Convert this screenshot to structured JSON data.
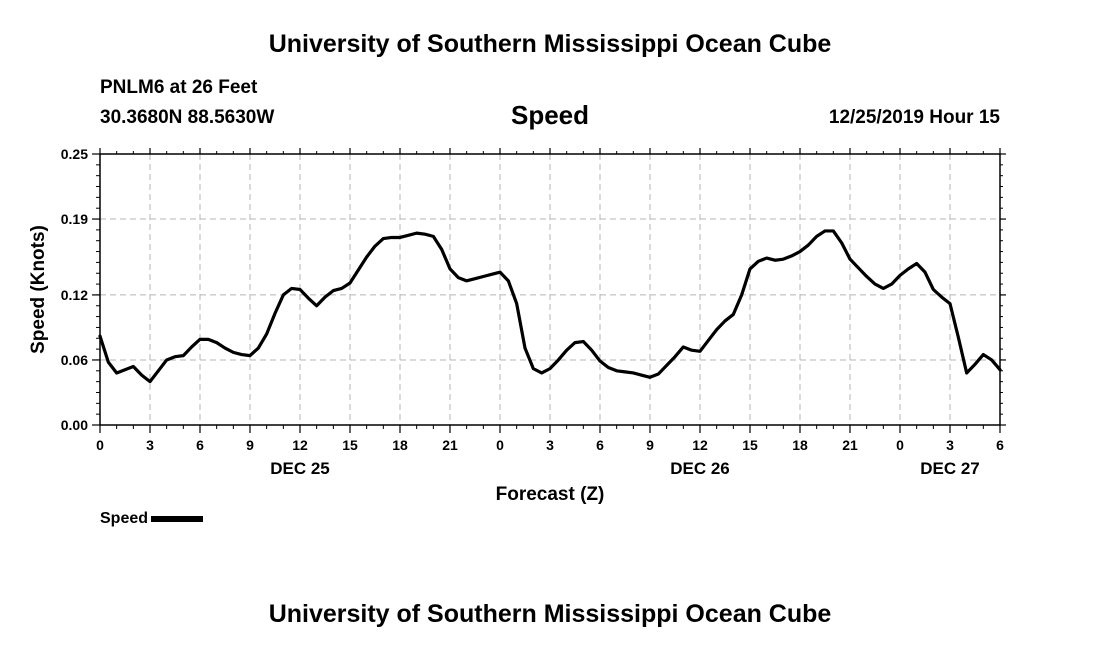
{
  "header": {
    "title": "University of Southern Mississippi Ocean Cube",
    "station": "PNLM6 at 26 Feet",
    "coords": "30.3680N 88.5630W",
    "variable": "Speed",
    "datetime": "12/25/2019 Hour 15"
  },
  "footer": {
    "title": "University of Southern Mississippi Ocean Cube"
  },
  "legend": {
    "label": "Speed"
  },
  "chart_data": {
    "type": "line",
    "title": "Speed",
    "xlabel": "Forecast (Z)",
    "ylabel": "Speed (Knots)",
    "xlim": [
      0,
      54
    ],
    "ylim": [
      0,
      0.25
    ],
    "yticks": [
      0.0,
      0.06,
      0.12,
      0.19,
      0.25
    ],
    "ytick_labels": [
      "0.00",
      "0.06",
      "0.12",
      "0.19",
      "0.25"
    ],
    "xticks": [
      0,
      3,
      6,
      9,
      12,
      15,
      18,
      21,
      24,
      27,
      30,
      33,
      36,
      39,
      42,
      45,
      48,
      51,
      54
    ],
    "xtick_labels": [
      "0",
      "3",
      "6",
      "9",
      "12",
      "15",
      "18",
      "21",
      "0",
      "3",
      "6",
      "9",
      "12",
      "15",
      "18",
      "21",
      "0",
      "3",
      "6"
    ],
    "date_labels": [
      {
        "label": "DEC 25",
        "hour": 12
      },
      {
        "label": "DEC 26",
        "hour": 36
      },
      {
        "label": "DEC 27",
        "hour": 51
      }
    ],
    "grid": true,
    "series": [
      {
        "name": "Speed",
        "color": "#000000",
        "x": [
          0,
          0.5,
          1,
          1.5,
          2,
          2.5,
          3,
          3.5,
          4,
          4.5,
          5,
          5.5,
          6,
          6.5,
          7,
          7.5,
          8,
          8.5,
          9,
          9.5,
          10,
          10.5,
          11,
          11.5,
          12,
          12.5,
          13,
          13.5,
          14,
          14.5,
          15,
          15.5,
          16,
          16.5,
          17,
          17.5,
          18,
          18.5,
          19,
          19.5,
          20,
          20.5,
          21,
          21.5,
          22,
          22.5,
          23,
          23.5,
          24,
          24.5,
          25,
          25.5,
          26,
          26.5,
          27,
          27.5,
          28,
          28.5,
          29,
          29.5,
          30,
          30.5,
          31,
          31.5,
          32,
          32.5,
          33,
          33.5,
          34,
          34.5,
          35,
          35.5,
          36,
          36.5,
          37,
          37.5,
          38,
          38.5,
          39,
          39.5,
          40,
          40.5,
          41,
          41.5,
          42,
          42.5,
          43,
          43.5,
          44,
          44.5,
          45,
          45.5,
          46,
          46.5,
          47,
          47.5,
          48,
          48.5,
          49,
          49.5,
          50,
          50.5,
          51,
          51.5,
          52,
          52.5,
          53,
          53.5,
          54
        ],
        "values": [
          0.082,
          0.058,
          0.048,
          0.051,
          0.054,
          0.046,
          0.04,
          0.05,
          0.06,
          0.063,
          0.064,
          0.072,
          0.079,
          0.079,
          0.076,
          0.071,
          0.067,
          0.065,
          0.064,
          0.071,
          0.084,
          0.103,
          0.12,
          0.126,
          0.125,
          0.117,
          0.11,
          0.118,
          0.124,
          0.126,
          0.131,
          0.143,
          0.155,
          0.165,
          0.172,
          0.173,
          0.173,
          0.175,
          0.177,
          0.176,
          0.174,
          0.162,
          0.144,
          0.136,
          0.133,
          0.135,
          0.137,
          0.139,
          0.141,
          0.133,
          0.112,
          0.071,
          0.052,
          0.048,
          0.052,
          0.06,
          0.069,
          0.076,
          0.077,
          0.069,
          0.059,
          0.053,
          0.05,
          0.049,
          0.048,
          0.046,
          0.044,
          0.047,
          0.055,
          0.063,
          0.072,
          0.069,
          0.068,
          0.078,
          0.088,
          0.096,
          0.102,
          0.12,
          0.144,
          0.151,
          0.154,
          0.152,
          0.153,
          0.156,
          0.16,
          0.166,
          0.174,
          0.179,
          0.179,
          0.168,
          0.153,
          0.145,
          0.137,
          0.13,
          0.126,
          0.13,
          0.138,
          0.144,
          0.149,
          0.141,
          0.125,
          0.118,
          0.112,
          0.081,
          0.048,
          0.056,
          0.065,
          0.06,
          0.051
        ]
      }
    ]
  }
}
